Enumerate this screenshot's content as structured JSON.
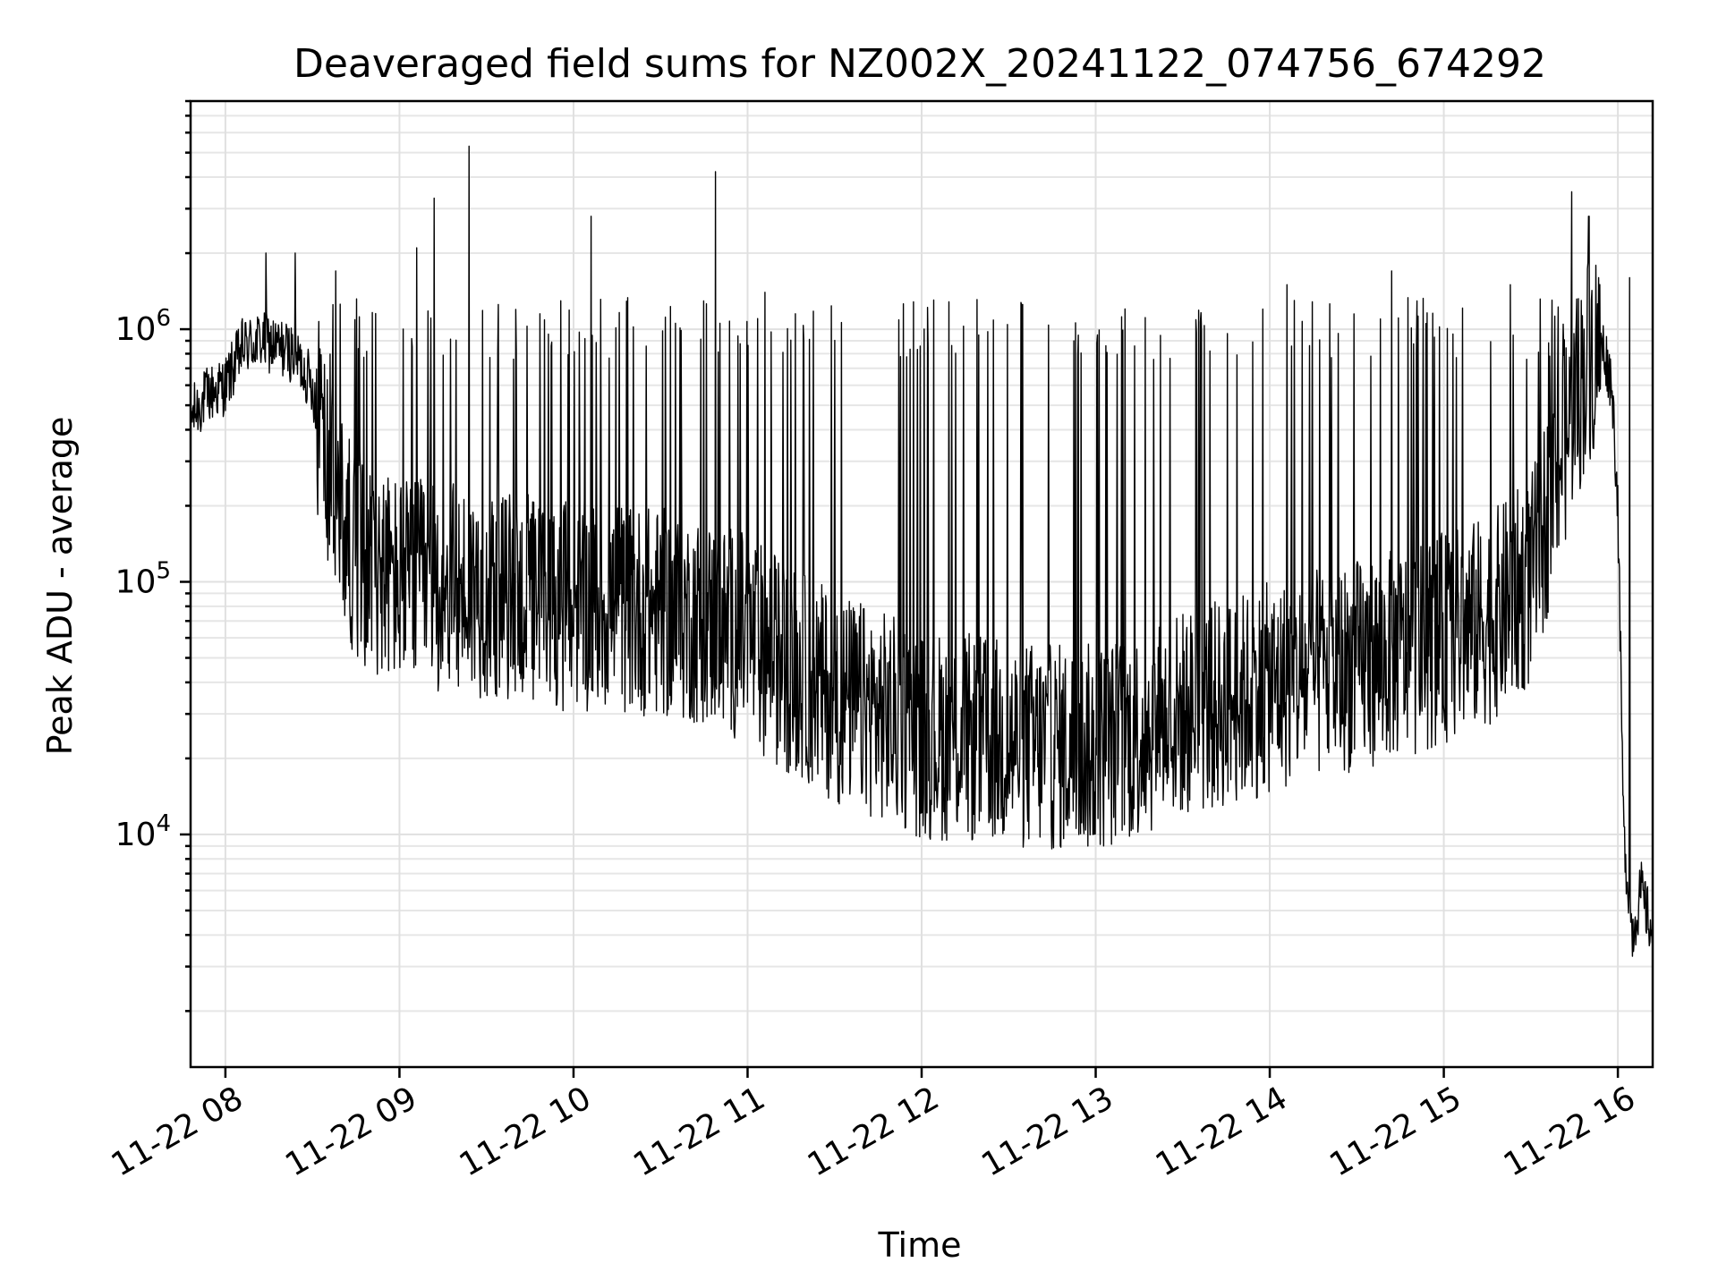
{
  "chart_data": {
    "type": "line",
    "title": "Deaveraged field sums for NZ002X_20241122_074756_674292",
    "xlabel": "Time",
    "ylabel": "Peak ADU - average",
    "yscale": "log",
    "xlim": [
      "2024-11-22 07:48",
      "2024-11-22 16:12"
    ],
    "ylim": [
      1200,
      8000000
    ],
    "grid": true,
    "x_ticks": [
      "11-22 08",
      "11-22 09",
      "11-22 10",
      "11-22 11",
      "11-22 12",
      "11-22 13",
      "11-22 14",
      "11-22 15",
      "11-22 16"
    ],
    "y_ticks": [
      {
        "value": 10000,
        "base": "10",
        "exp": "4"
      },
      {
        "value": 100000,
        "base": "10",
        "exp": "5"
      },
      {
        "value": 1000000,
        "base": "10",
        "exp": "6"
      }
    ],
    "series": [
      {
        "color": "#000000",
        "x": [
          "2024-11-22 07:48",
          "2024-11-22 07:54",
          "2024-11-22 08:00",
          "2024-11-22 08:06",
          "2024-11-22 08:12",
          "2024-11-22 08:18",
          "2024-11-22 08:24",
          "2024-11-22 08:30",
          "2024-11-22 08:36",
          "2024-11-22 08:42",
          "2024-11-22 08:48",
          "2024-11-22 08:54",
          "2024-11-22 09:00",
          "2024-11-22 09:15",
          "2024-11-22 09:30",
          "2024-11-22 09:45",
          "2024-11-22 10:00",
          "2024-11-22 10:15",
          "2024-11-22 10:30",
          "2024-11-22 10:45",
          "2024-11-22 11:00",
          "2024-11-22 11:15",
          "2024-11-22 11:30",
          "2024-11-22 11:45",
          "2024-11-22 12:00",
          "2024-11-22 12:15",
          "2024-11-22 12:30",
          "2024-11-22 12:45",
          "2024-11-22 13:00",
          "2024-11-22 13:15",
          "2024-11-22 13:30",
          "2024-11-22 13:45",
          "2024-11-22 14:00",
          "2024-11-22 14:15",
          "2024-11-22 14:30",
          "2024-11-22 14:45",
          "2024-11-22 15:00",
          "2024-11-22 15:15",
          "2024-11-22 15:30",
          "2024-11-22 15:40",
          "2024-11-22 15:50",
          "2024-11-22 15:55",
          "2024-11-22 15:58",
          "2024-11-22 16:00",
          "2024-11-22 16:02",
          "2024-11-22 16:05",
          "2024-11-22 16:08",
          "2024-11-22 16:12"
        ],
        "y": [
          450000,
          550000,
          600000,
          850000,
          900000,
          850000,
          800000,
          600000,
          250000,
          150000,
          120000,
          110000,
          100000,
          95000,
          90000,
          85000,
          80000,
          80000,
          75000,
          70000,
          60000,
          45000,
          35000,
          30000,
          25000,
          24000,
          23000,
          22000,
          22000,
          25000,
          30000,
          33000,
          38000,
          42000,
          47000,
          52000,
          60000,
          70000,
          100000,
          300000,
          800000,
          850000,
          600000,
          200000,
          10000,
          4000,
          6000,
          4000
        ],
        "spikes": [
          {
            "x": "2024-11-22 08:14",
            "y": 2000000
          },
          {
            "x": "2024-11-22 08:24",
            "y": 2000000
          },
          {
            "x": "2024-11-22 08:38",
            "y": 1700000
          },
          {
            "x": "2024-11-22 09:06",
            "y": 2100000
          },
          {
            "x": "2024-11-22 09:12",
            "y": 3300000
          },
          {
            "x": "2024-11-22 09:24",
            "y": 5300000
          },
          {
            "x": "2024-11-22 10:06",
            "y": 2800000
          },
          {
            "x": "2024-11-22 10:49",
            "y": 4200000
          },
          {
            "x": "2024-11-22 11:06",
            "y": 1400000
          },
          {
            "x": "2024-11-22 14:06",
            "y": 1500000
          },
          {
            "x": "2024-11-22 14:42",
            "y": 1700000
          },
          {
            "x": "2024-11-22 15:23",
            "y": 1500000
          },
          {
            "x": "2024-11-22 15:44",
            "y": 3500000
          },
          {
            "x": "2024-11-22 15:50",
            "y": 2800000
          }
        ],
        "low_dips": [
          {
            "x": "2024-11-22 12:59",
            "y": 10000
          },
          {
            "x": "2024-11-22 16:04",
            "y": 1600000
          }
        ]
      }
    ]
  }
}
